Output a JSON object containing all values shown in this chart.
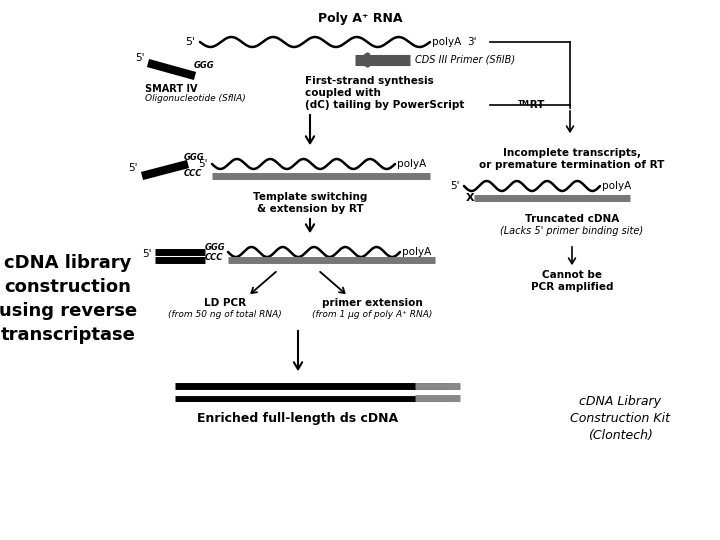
{
  "bg_color": "#ffffff",
  "fig_width": 7.2,
  "fig_height": 5.4,
  "title": "Poly A⁺ RNA",
  "left_label_lines": [
    "cDNA library",
    "construction",
    "using reverse",
    "transcriptase"
  ],
  "bottom_right_lines": [
    "cDNA Library",
    "Construction Kit",
    "(Clontech)"
  ],
  "bottom_label": "Enriched full-length ds cDNA"
}
